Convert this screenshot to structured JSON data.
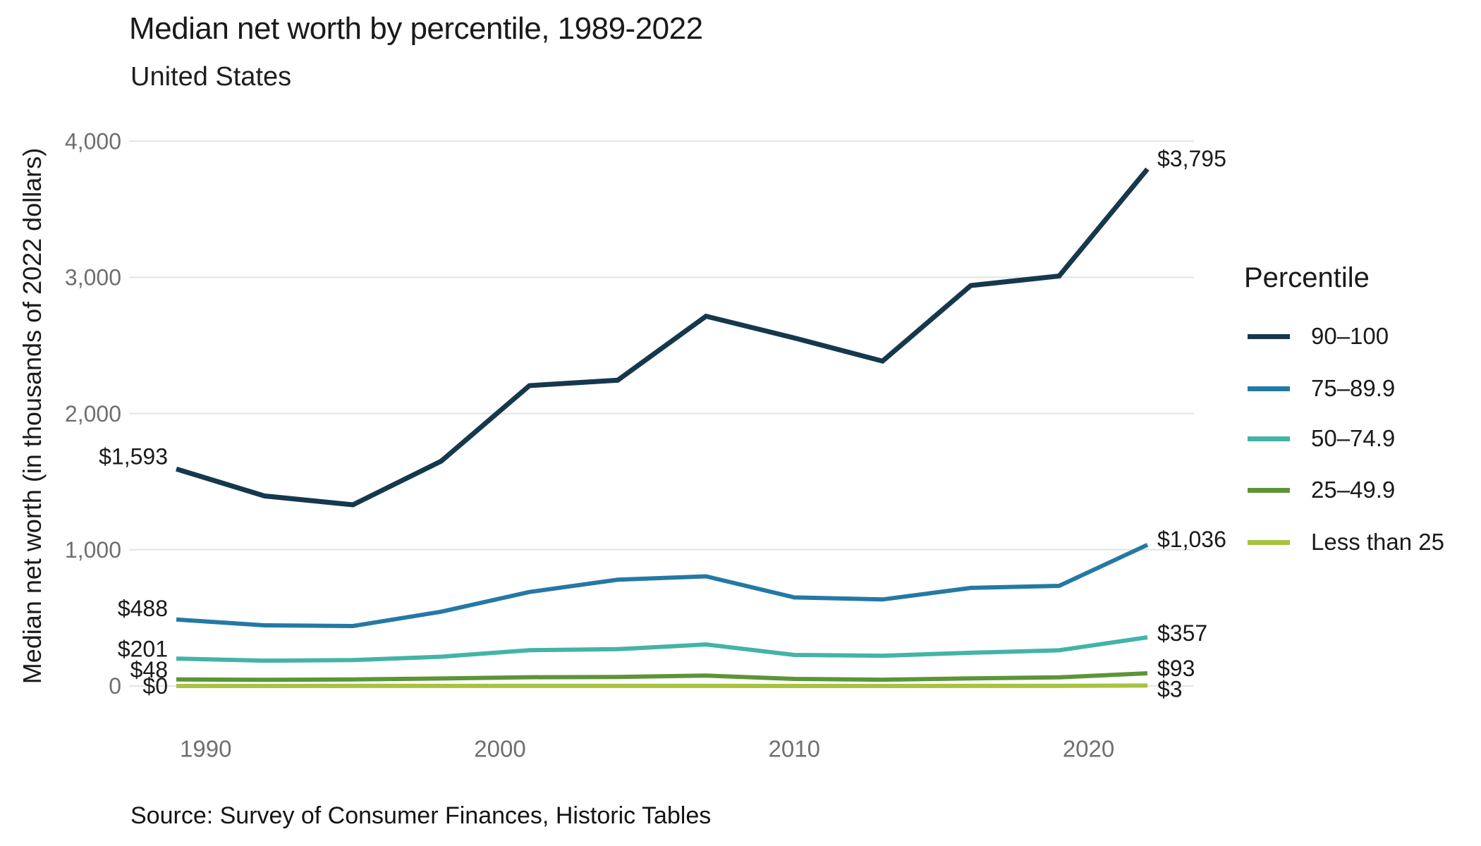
{
  "header": {
    "title": "Median net worth by percentile, 1989-2022",
    "subtitle": "United States"
  },
  "source": "Source: Survey of Consumer Finances, Historic Tables",
  "y_axis": {
    "title": "Median net worth (in thousands of 2022 dollars)",
    "tick_values": [
      0,
      1000,
      2000,
      3000,
      4000
    ],
    "tick_labels": [
      "0",
      "1,000",
      "2,000",
      "3,000",
      "4,000"
    ]
  },
  "x_axis": {
    "tick_values": [
      1990,
      2000,
      2010,
      2020
    ],
    "tick_labels": [
      "1990",
      "2000",
      "2010",
      "2020"
    ]
  },
  "legend": {
    "title": "Percentile"
  },
  "colors": {
    "grid": "#e4e4e4",
    "tick_text": "#6f6f6f",
    "label_text": "#1a1a1a"
  },
  "chart_data": {
    "type": "line",
    "title": "Median net worth by percentile, 1989-2022",
    "subtitle": "United States",
    "xlabel": "",
    "ylabel": "Median net worth (in thousands of 2022 dollars)",
    "x": [
      1989,
      1992,
      1995,
      1998,
      2001,
      2004,
      2007,
      2010,
      2013,
      2016,
      2019,
      2022
    ],
    "series": [
      {
        "name": "90–100",
        "color": "#16384d",
        "values": [
          1593,
          1395,
          1330,
          1650,
          2205,
          2245,
          2715,
          2555,
          2385,
          2940,
          3010,
          3795
        ],
        "start_label": "$1,593",
        "end_label": "$3,795"
      },
      {
        "name": "75–89.9",
        "color": "#2479a4",
        "values": [
          488,
          445,
          440,
          545,
          690,
          780,
          805,
          650,
          635,
          720,
          735,
          1036
        ],
        "start_label": "$488",
        "end_label": "$1,036"
      },
      {
        "name": "50–74.9",
        "color": "#44b3a8",
        "values": [
          201,
          186,
          190,
          215,
          263,
          270,
          305,
          228,
          222,
          244,
          262,
          357
        ],
        "start_label": "$201",
        "end_label": "$357"
      },
      {
        "name": "25–49.9",
        "color": "#5d9438",
        "values": [
          48,
          45,
          48,
          55,
          64,
          66,
          76,
          52,
          46,
          56,
          63,
          93
        ],
        "start_label": "$48",
        "end_label": "$93"
      },
      {
        "name": "Less than 25",
        "color": "#a9c23f",
        "values": [
          0,
          0.2,
          0.3,
          0.3,
          0.4,
          0.4,
          0.4,
          0.1,
          0.1,
          0.3,
          0.5,
          3
        ],
        "start_label": "$0",
        "end_label": "$3"
      }
    ],
    "ylim": [
      0,
      4000
    ],
    "xlim": [
      1989,
      2022
    ],
    "grid": "horizontal",
    "legend_position": "right"
  }
}
